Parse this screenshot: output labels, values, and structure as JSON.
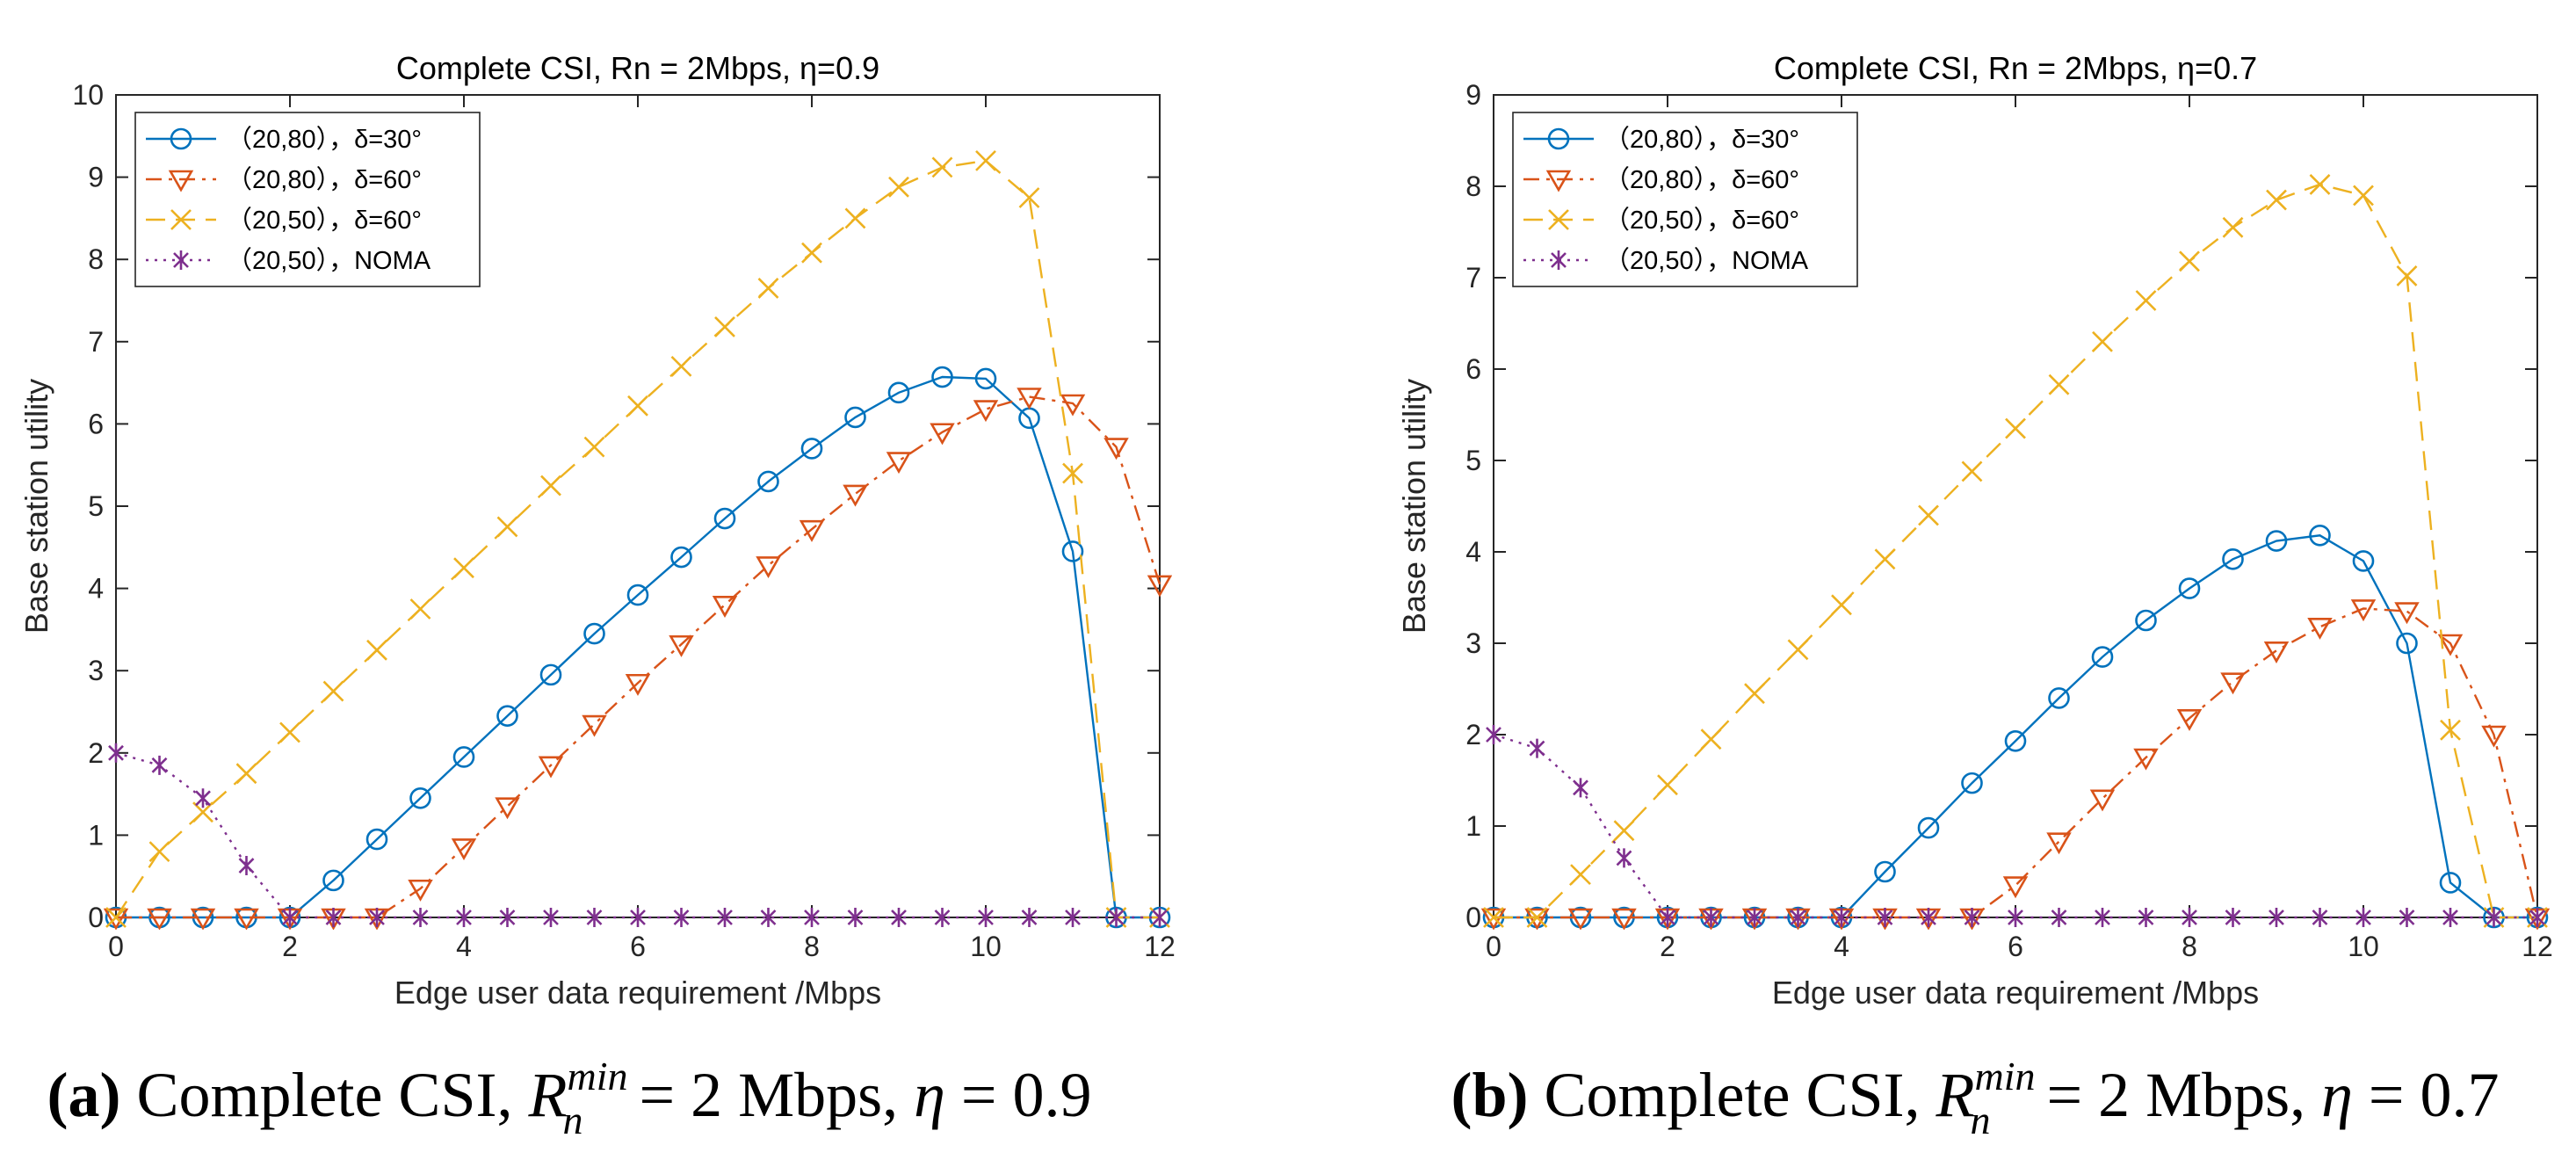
{
  "colors": {
    "series1": "#0072BD",
    "series2": "#D95319",
    "series3": "#EDB120",
    "series4": "#7E2F8E",
    "axis": "#262626"
  },
  "chart_data": [
    {
      "type": "line",
      "title": "Complete CSI, Rn = 2Mbps,  η=0.9",
      "xlabel": "Edge user data requirement /Mbps",
      "ylabel": "Base station utility",
      "xlim": [
        0,
        12
      ],
      "ylim": [
        0,
        10
      ],
      "xticks": [
        0,
        2,
        4,
        6,
        8,
        10,
        12
      ],
      "yticks": [
        0,
        1,
        2,
        3,
        4,
        5,
        6,
        7,
        8,
        9,
        10
      ],
      "xtick_labels": [
        "0",
        "2",
        "4",
        "6",
        "8",
        "10",
        "12"
      ],
      "ytick_labels": [
        "0",
        "1",
        "2",
        "3",
        "4",
        "5",
        "6",
        "7",
        "8",
        "9",
        "10"
      ],
      "legend_position": "top-left",
      "x": [
        0,
        0.5,
        1,
        1.5,
        2,
        2.5,
        3,
        3.5,
        4,
        4.5,
        5,
        5.5,
        6,
        6.5,
        7,
        7.5,
        8,
        8.5,
        9,
        9.5,
        10,
        10.5,
        11,
        11.5,
        12
      ],
      "series": [
        {
          "name": "（20,80），δ=30°",
          "marker": "circle",
          "linestyle": "solid",
          "values": [
            0,
            0,
            0,
            0,
            0,
            0.45,
            0.95,
            1.45,
            1.95,
            2.45,
            2.95,
            3.45,
            3.92,
            4.38,
            4.85,
            5.3,
            5.7,
            6.08,
            6.38,
            6.57,
            6.55,
            6.07,
            4.45,
            0,
            0
          ]
        },
        {
          "name": "（20,80），δ=60°",
          "marker": "triangle-down",
          "linestyle": "dashdot",
          "values": [
            0,
            0,
            0,
            0,
            0,
            0,
            0,
            0.35,
            0.85,
            1.35,
            1.85,
            2.35,
            2.85,
            3.32,
            3.8,
            4.28,
            4.72,
            5.15,
            5.55,
            5.9,
            6.18,
            6.33,
            6.25,
            5.72,
            4.05
          ]
        },
        {
          "name": "（20,50），δ=60°",
          "marker": "x",
          "linestyle": "dashed",
          "values": [
            0,
            0.8,
            1.28,
            1.75,
            2.25,
            2.75,
            3.25,
            3.75,
            4.25,
            4.75,
            5.25,
            5.72,
            6.22,
            6.7,
            7.18,
            7.65,
            8.08,
            8.5,
            8.88,
            9.12,
            9.2,
            8.75,
            5.4,
            0,
            0
          ]
        },
        {
          "name": "（20,50），NOMA",
          "marker": "asterisk",
          "linestyle": "dotted",
          "values": [
            2,
            1.85,
            1.45,
            0.63,
            0,
            0,
            0,
            0,
            0,
            0,
            0,
            0,
            0,
            0,
            0,
            0,
            0,
            0,
            0,
            0,
            0,
            0,
            0,
            0,
            0
          ]
        }
      ]
    },
    {
      "type": "line",
      "title": "Complete CSI, Rn = 2Mbps,  η=0.7",
      "xlabel": "Edge user data requirement /Mbps",
      "ylabel": "Base station utility",
      "xlim": [
        0,
        12
      ],
      "ylim": [
        0,
        9
      ],
      "xticks": [
        0,
        2,
        4,
        6,
        8,
        10,
        12
      ],
      "yticks": [
        0,
        1,
        2,
        3,
        4,
        5,
        6,
        7,
        8,
        9
      ],
      "xtick_labels": [
        "0",
        "2",
        "4",
        "6",
        "8",
        "10",
        "12"
      ],
      "ytick_labels": [
        "0",
        "1",
        "2",
        "3",
        "4",
        "5",
        "6",
        "7",
        "8",
        "9"
      ],
      "legend_position": "top-left",
      "x": [
        0,
        0.5,
        1,
        1.5,
        2,
        2.5,
        3,
        3.5,
        4,
        4.5,
        5,
        5.5,
        6,
        6.5,
        7,
        7.5,
        8,
        8.5,
        9,
        9.5,
        10,
        10.5,
        11,
        11.5,
        12
      ],
      "series": [
        {
          "name": "（20,80），δ=30°",
          "marker": "circle",
          "linestyle": "solid",
          "values": [
            0,
            0,
            0,
            0,
            0,
            0,
            0,
            0,
            0,
            0.5,
            0.98,
            1.47,
            1.93,
            2.4,
            2.85,
            3.25,
            3.6,
            3.92,
            4.12,
            4.18,
            3.9,
            3.0,
            0.38,
            0,
            0
          ]
        },
        {
          "name": "（20,80），δ=60°",
          "marker": "triangle-down",
          "linestyle": "dashdot",
          "values": [
            0,
            0,
            0,
            0,
            0,
            0,
            0,
            0,
            0,
            0,
            0,
            0,
            0.35,
            0.83,
            1.3,
            1.75,
            2.18,
            2.58,
            2.92,
            3.18,
            3.38,
            3.35,
            3.0,
            2.0,
            0
          ]
        },
        {
          "name": "（20,50），δ=60°",
          "marker": "x",
          "linestyle": "dashed",
          "values": [
            0,
            0,
            0.47,
            0.95,
            1.45,
            1.95,
            2.45,
            2.93,
            3.42,
            3.92,
            4.4,
            4.88,
            5.35,
            5.83,
            6.3,
            6.75,
            7.18,
            7.55,
            7.85,
            8.02,
            7.9,
            7.02,
            2.05,
            0,
            0
          ]
        },
        {
          "name": "（20,50），NOMA",
          "marker": "asterisk",
          "linestyle": "dotted",
          "values": [
            2,
            1.85,
            1.42,
            0.65,
            0,
            0,
            0,
            0,
            0,
            0,
            0,
            0,
            0,
            0,
            0,
            0,
            0,
            0,
            0,
            0,
            0,
            0,
            0,
            0,
            0
          ]
        }
      ]
    }
  ],
  "captions": [
    {
      "label": "(a)",
      "prefix": "Complete CSI, ",
      "var": "R",
      "sub": "n",
      "sup": "min",
      "middle": " = 2 Mbps, ",
      "eta": "η",
      "suffix": " = 0.9"
    },
    {
      "label": "(b)",
      "prefix": "Complete CSI, ",
      "var": "R",
      "sub": "n",
      "sup": "min",
      "middle": " = 2 Mbps, ",
      "eta": "η",
      "suffix": " = 0.7"
    }
  ]
}
